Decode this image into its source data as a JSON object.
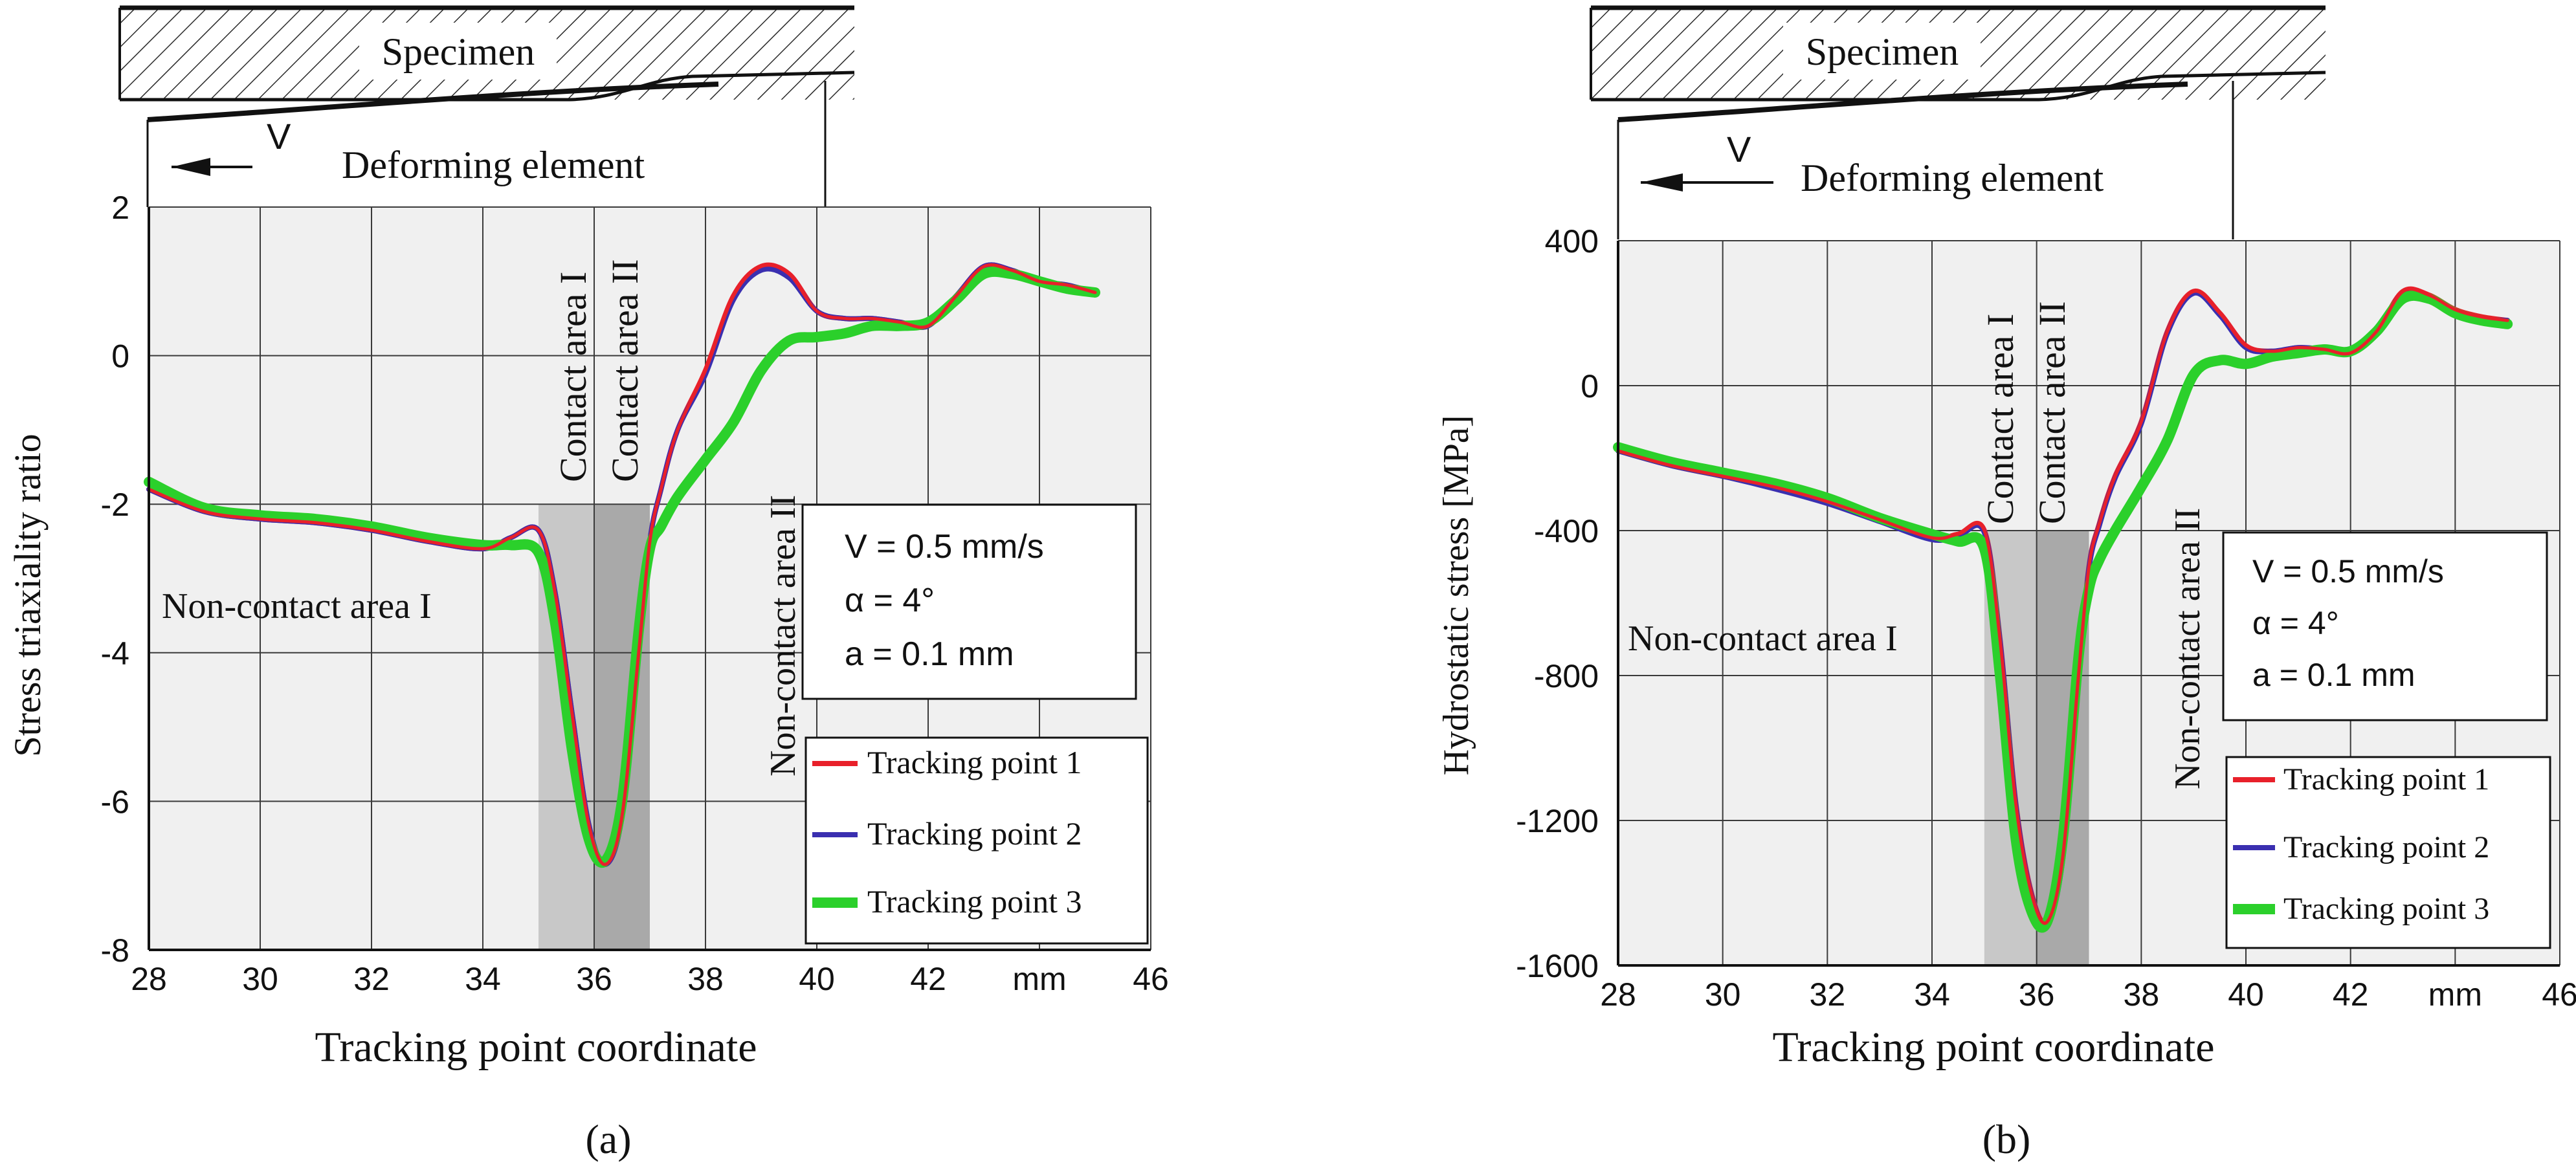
{
  "panels": [
    {
      "panel_label": "(a)",
      "header": {
        "specimen_label": "Specimen",
        "velocity_symbol": "V",
        "deforming_label": "Deforming element"
      },
      "region_labels": {
        "contact_1": "Contact area I",
        "contact_2": "Contact area II",
        "noncontact_1": "Non-contact area I",
        "noncontact_2": "Non-contact area II"
      },
      "params": [
        "V = 0.5 mm/s",
        "α = 4°",
        "a = 0.1 mm"
      ],
      "x_unit": "mm"
    },
    {
      "panel_label": "(b)",
      "header": {
        "specimen_label": "Specimen",
        "velocity_symbol": "V",
        "deforming_label": "Deforming element"
      },
      "region_labels": {
        "contact_1": "Contact area I",
        "contact_2": "Contact area II",
        "noncontact_1": "Non-contact area I",
        "noncontact_2": "Non-contact area II"
      },
      "params": [
        "V = 0.5 mm/s",
        "α = 4°",
        "a = 0.1 mm"
      ],
      "x_unit": "mm"
    }
  ],
  "colors": {
    "tp1": "#e8202a",
    "tp2": "#3a2fb0",
    "tp3": "#2bd02b",
    "plot_bg": "#f0f0f0",
    "contact1": "#c8c8c8",
    "contact2": "#a9a9a9",
    "grid": "#3a3a3a"
  },
  "chart_data": [
    {
      "type": "line",
      "title": "",
      "xlabel": "Tracking point coordinate",
      "ylabel": "Stress triaxiality ratio",
      "xlim": [
        28,
        46
      ],
      "ylim": [
        -8,
        2
      ],
      "xticks": [
        "28",
        "30",
        "32",
        "34",
        "36",
        "38",
        "40",
        "42",
        "mm",
        "46"
      ],
      "yticks": [
        "2",
        "0",
        "-2",
        "-4",
        "-6",
        "-8"
      ],
      "contact_area_I": [
        35,
        36
      ],
      "contact_area_II": [
        36,
        37
      ],
      "series": [
        {
          "name": "Tracking point 1",
          "x": [
            28,
            29,
            30,
            31,
            32,
            33,
            34,
            34.5,
            35,
            35.3,
            35.6,
            35.9,
            36.2,
            36.5,
            36.8,
            37,
            37.2,
            37.5,
            38,
            38.5,
            39,
            39.5,
            40,
            40.5,
            41,
            41.5,
            42,
            42.5,
            43,
            43.5,
            44,
            44.5,
            45
          ],
          "values": [
            -1.8,
            -2.1,
            -2.2,
            -2.25,
            -2.35,
            -2.5,
            -2.6,
            -2.45,
            -2.35,
            -3.2,
            -4.8,
            -6.3,
            -6.85,
            -6.2,
            -4.0,
            -2.5,
            -1.8,
            -1.0,
            -0.2,
            0.8,
            1.2,
            1.1,
            0.6,
            0.5,
            0.5,
            0.45,
            0.4,
            0.8,
            1.2,
            1.15,
            1.0,
            0.95,
            0.85
          ]
        },
        {
          "name": "Tracking point 2",
          "x": [
            28,
            29,
            30,
            31,
            32,
            33,
            34,
            34.5,
            35,
            35.3,
            35.6,
            35.9,
            36.2,
            36.5,
            36.8,
            37,
            37.2,
            37.5,
            38,
            38.5,
            39,
            39.5,
            40,
            40.5,
            41,
            41.5,
            42,
            42.5,
            43,
            43.5,
            44,
            44.5,
            45
          ],
          "values": [
            -1.8,
            -2.1,
            -2.2,
            -2.25,
            -2.35,
            -2.5,
            -2.6,
            -2.45,
            -2.35,
            -3.2,
            -4.8,
            -6.3,
            -6.85,
            -6.2,
            -4.0,
            -2.5,
            -1.8,
            -1.0,
            -0.25,
            0.75,
            1.15,
            1.05,
            0.6,
            0.5,
            0.5,
            0.45,
            0.4,
            0.8,
            1.2,
            1.15,
            1.0,
            0.95,
            0.85
          ]
        },
        {
          "name": "Tracking point 3",
          "x": [
            28,
            29,
            30,
            31,
            32,
            33,
            34,
            34.5,
            35,
            35.3,
            35.6,
            35.9,
            36.2,
            36.5,
            36.8,
            37,
            37.2,
            37.5,
            38,
            38.5,
            39,
            39.5,
            40,
            40.5,
            41,
            41.5,
            42,
            42.5,
            43,
            43.5,
            44,
            44.5,
            45
          ],
          "values": [
            -1.7,
            -2.05,
            -2.15,
            -2.2,
            -2.3,
            -2.45,
            -2.55,
            -2.55,
            -2.65,
            -3.6,
            -5.3,
            -6.5,
            -6.8,
            -6.0,
            -3.7,
            -2.6,
            -2.3,
            -1.9,
            -1.4,
            -0.9,
            -0.2,
            0.2,
            0.25,
            0.3,
            0.4,
            0.4,
            0.45,
            0.75,
            1.1,
            1.1,
            1.0,
            0.9,
            0.85
          ]
        }
      ]
    },
    {
      "type": "line",
      "title": "",
      "xlabel": "Tracking point coordinate",
      "ylabel": "Hydrostatic stress [MPa]",
      "xlim": [
        28,
        46
      ],
      "ylim": [
        -1600,
        400
      ],
      "xticks": [
        "28",
        "30",
        "32",
        "34",
        "36",
        "38",
        "40",
        "42",
        "mm",
        "46"
      ],
      "yticks": [
        "400",
        "0",
        "-400",
        "-800",
        "-1200",
        "-1600"
      ],
      "contact_area_I": [
        35,
        36
      ],
      "contact_area_II": [
        36,
        37
      ],
      "series": [
        {
          "name": "Tracking point 1",
          "x": [
            28,
            29,
            30,
            31,
            32,
            33,
            34,
            34.5,
            35,
            35.3,
            35.6,
            35.9,
            36.2,
            36.5,
            36.8,
            37,
            37.2,
            37.5,
            38,
            38.5,
            39,
            39.5,
            40,
            40.5,
            41,
            41.5,
            42,
            42.5,
            43,
            43.5,
            44,
            44.5,
            45
          ],
          "values": [
            -180,
            -220,
            -250,
            -280,
            -320,
            -370,
            -420,
            -410,
            -400,
            -700,
            -1150,
            -1400,
            -1480,
            -1300,
            -800,
            -500,
            -380,
            -250,
            -100,
            150,
            260,
            200,
            110,
            95,
            105,
            100,
            90,
            150,
            260,
            250,
            210,
            190,
            180
          ]
        },
        {
          "name": "Tracking point 2",
          "x": [
            28,
            29,
            30,
            31,
            32,
            33,
            34,
            34.5,
            35,
            35.3,
            35.6,
            35.9,
            36.2,
            36.5,
            36.8,
            37,
            37.2,
            37.5,
            38,
            38.5,
            39,
            39.5,
            40,
            40.5,
            41,
            41.5,
            42,
            42.5,
            43,
            43.5,
            44,
            44.5,
            45
          ],
          "values": [
            -180,
            -220,
            -250,
            -285,
            -325,
            -375,
            -425,
            -415,
            -405,
            -705,
            -1155,
            -1405,
            -1485,
            -1305,
            -805,
            -505,
            -385,
            -255,
            -105,
            145,
            255,
            195,
            105,
            95,
            105,
            100,
            90,
            150,
            255,
            245,
            205,
            185,
            180
          ]
        },
        {
          "name": "Tracking point 3",
          "x": [
            28,
            29,
            30,
            31,
            32,
            33,
            34,
            34.5,
            35,
            35.3,
            35.6,
            35.9,
            36.2,
            36.5,
            36.8,
            37,
            37.2,
            37.5,
            38,
            38.5,
            39,
            39.5,
            40,
            40.5,
            41,
            41.5,
            42,
            42.5,
            43,
            43.5,
            44,
            44.5,
            45
          ],
          "values": [
            -170,
            -210,
            -240,
            -270,
            -310,
            -365,
            -410,
            -430,
            -450,
            -800,
            -1250,
            -1450,
            -1480,
            -1250,
            -750,
            -560,
            -480,
            -400,
            -280,
            -150,
            30,
            70,
            60,
            80,
            90,
            100,
            95,
            150,
            240,
            240,
            200,
            180,
            170
          ]
        }
      ]
    }
  ]
}
